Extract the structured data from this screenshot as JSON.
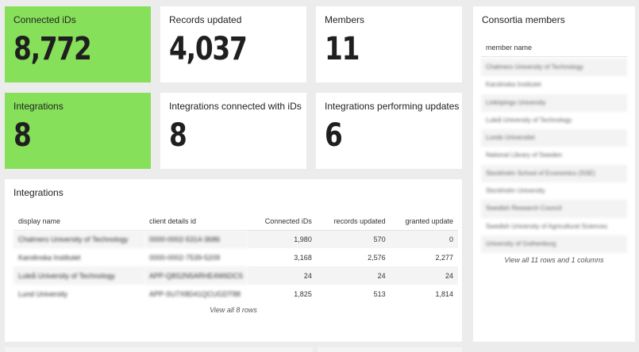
{
  "kpis": {
    "connected_ids": {
      "title": "Connected iDs",
      "value": "8,772"
    },
    "records_updated": {
      "title": "Records updated",
      "value": "4,037"
    },
    "members": {
      "title": "Members",
      "value": "11"
    },
    "integrations": {
      "title": "Integrations",
      "value": "8"
    },
    "integrations_connected": {
      "title": "Integrations connected with iDs",
      "value": "8"
    },
    "integrations_updating": {
      "title": "Integrations performing updates",
      "value": "6"
    }
  },
  "colors": {
    "accent_green": "#86e05a",
    "tile_bg": "#ffffff",
    "page_bg": "#ececec"
  },
  "integrations_table": {
    "title": "Integrations",
    "columns": [
      "display name",
      "client details id",
      "Connected iDs",
      "records updated",
      "granted update"
    ],
    "rows": [
      {
        "name": "Chalmers University of Technology",
        "client_id": "0000-0002-5314-3686",
        "connected": "1,980",
        "records": "570",
        "granted": "0"
      },
      {
        "name": "Karolinska Institutet",
        "client_id": "0000-0002-7539-5209",
        "connected": "3,168",
        "records": "2,576",
        "granted": "2,277"
      },
      {
        "name": "Luleå University of Technology",
        "client_id": "APP-Q8S2N5ARHE4W6DCS",
        "connected": "24",
        "records": "24",
        "granted": "24"
      },
      {
        "name": "Lund University",
        "client_id": "APP-SU7X8D41QCUGDT88",
        "connected": "1,825",
        "records": "513",
        "granted": "1,814"
      }
    ],
    "view_all": "View all 8 rows"
  },
  "consortia": {
    "title": "Consortia members",
    "column": "member name",
    "members": [
      "Chalmers University of Technology",
      "Karolinska Institutet",
      "Linköpings University",
      "Luleå University of Technology",
      "Lunds Universitet",
      "National Library of Sweden",
      "Stockholm School of Economics (SSE)",
      "Stockholm University",
      "Swedish Research Council",
      "Swedish University of Agricultural Sciences",
      "University of Gothenburg"
    ],
    "view_all": "View all 11 rows and 1 columns"
  }
}
